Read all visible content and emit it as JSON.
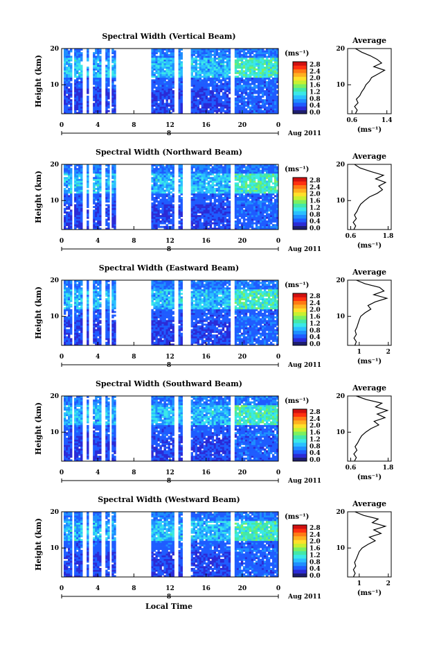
{
  "colors": [
    "#1e1e6e",
    "#2b2bd6",
    "#1f5cff",
    "#1f8fff",
    "#2ac0ff",
    "#3be8e8",
    "#44e8a8",
    "#7cf060",
    "#c8f030",
    "#ffe02a",
    "#ffb020",
    "#ff7a14",
    "#ff3010",
    "#d01010"
  ],
  "chart_data": {
    "type": "heatmap",
    "panels": [
      {
        "title": "Spectral Width (Vertical Beam)",
        "ylabel": "Height (km)",
        "yticks": [
          "20",
          "10"
        ],
        "xticks": [
          "0",
          "4",
          "8",
          "12",
          "16",
          "20",
          "0"
        ],
        "day_label": "8",
        "date_label": "Aug 2011",
        "colorbar_unit": "(ms⁻¹)",
        "colorbar_ticks": [
          "2.8",
          "2.4",
          "2.0",
          "1.6",
          "1.2",
          "0.8",
          "0.4",
          "0.0"
        ],
        "profile_title": "Average",
        "profile_xticks": [
          "0.6",
          "1.4"
        ],
        "profile_xrange": [
          0.5,
          1.5
        ],
        "profile_yticks": [
          "20",
          "10"
        ],
        "profile_unit": "(ms⁻¹)",
        "profile_heights": [
          2,
          3,
          4,
          5,
          6,
          7,
          8,
          9,
          10,
          11,
          12,
          13,
          14,
          15,
          16,
          17,
          18,
          19,
          20
        ],
        "profile_values": [
          0.68,
          0.72,
          0.66,
          0.74,
          0.7,
          0.78,
          0.82,
          0.88,
          0.92,
          1.0,
          1.05,
          1.2,
          1.35,
          1.1,
          1.28,
          1.18,
          1.02,
          0.82,
          0.68
        ]
      },
      {
        "title": "Spectral Width (Northward Beam)",
        "ylabel": "Height (km)",
        "yticks": [
          "20",
          "10"
        ],
        "xticks": [
          "0",
          "4",
          "8",
          "12",
          "16",
          "20",
          "0"
        ],
        "day_label": "8",
        "date_label": "Aug 2011",
        "colorbar_unit": "(ms⁻¹)",
        "colorbar_ticks": [
          "2.8",
          "2.4",
          "2.0",
          "1.6",
          "1.2",
          "0.8",
          "0.4",
          "0.0"
        ],
        "profile_title": "Average",
        "profile_xticks": [
          "0.6",
          "1.8"
        ],
        "profile_xrange": [
          0.5,
          1.9
        ],
        "profile_yticks": [
          "20",
          "10"
        ],
        "profile_unit": "(ms⁻¹)",
        "profile_heights": [
          2,
          3,
          4,
          5,
          6,
          7,
          8,
          9,
          10,
          11,
          12,
          13,
          14,
          15,
          16,
          17,
          18,
          19,
          20
        ],
        "profile_values": [
          0.7,
          0.76,
          0.68,
          0.78,
          0.72,
          0.8,
          0.85,
          0.92,
          1.05,
          1.2,
          1.45,
          1.62,
          1.5,
          1.72,
          1.4,
          1.65,
          1.25,
          0.9,
          0.72
        ]
      },
      {
        "title": "Spectral Width (Eastward Beam)",
        "ylabel": "Height (km)",
        "yticks": [
          "20",
          "10"
        ],
        "xticks": [
          "0",
          "4",
          "8",
          "12",
          "16",
          "20",
          "0"
        ],
        "day_label": "8",
        "date_label": "Aug 2011",
        "colorbar_unit": "(ms⁻¹)",
        "colorbar_ticks": [
          "2.8",
          "2.4",
          "2.0",
          "1.6",
          "1.2",
          "0.8",
          "0.4",
          "0.0"
        ],
        "profile_title": "Average",
        "profile_xticks": [
          "1",
          "2"
        ],
        "profile_xrange": [
          0.6,
          2.1
        ],
        "profile_yticks": [
          "20",
          "10"
        ],
        "profile_unit": "(ms⁻¹)",
        "profile_heights": [
          2,
          3,
          4,
          5,
          6,
          7,
          8,
          9,
          10,
          11,
          12,
          13,
          14,
          15,
          16,
          17,
          18,
          19,
          20
        ],
        "profile_values": [
          0.85,
          0.9,
          0.82,
          0.9,
          0.86,
          0.92,
          0.96,
          1.0,
          1.05,
          1.2,
          1.4,
          1.3,
          1.55,
          1.95,
          1.5,
          1.85,
          1.7,
          1.2,
          0.9
        ]
      },
      {
        "title": "Spectral Width (Southward Beam)",
        "ylabel": "Height (km)",
        "yticks": [
          "20",
          "10"
        ],
        "xticks": [
          "0",
          "4",
          "8",
          "12",
          "16",
          "20",
          "0"
        ],
        "day_label": "8",
        "date_label": "Aug 2011",
        "colorbar_unit": "(ms⁻¹)",
        "colorbar_ticks": [
          "2.8",
          "2.4",
          "2.0",
          "1.6",
          "1.2",
          "0.8",
          "0.4",
          "0.0"
        ],
        "profile_title": "Average",
        "profile_xticks": [
          "0.6",
          "1.8"
        ],
        "profile_xrange": [
          0.5,
          1.9
        ],
        "profile_yticks": [
          "20",
          "10"
        ],
        "profile_unit": "(ms⁻¹)",
        "profile_heights": [
          2,
          3,
          4,
          5,
          6,
          7,
          8,
          9,
          10,
          11,
          12,
          13,
          14,
          15,
          16,
          17,
          18,
          19,
          20
        ],
        "profile_values": [
          0.72,
          0.78,
          0.7,
          0.8,
          0.74,
          0.82,
          0.88,
          0.95,
          1.08,
          1.25,
          1.5,
          1.35,
          1.7,
          1.45,
          1.78,
          1.4,
          1.6,
          1.1,
          0.78
        ]
      },
      {
        "title": "Spectral Width (Westward Beam)",
        "ylabel": "Height (km)",
        "yticks": [
          "20",
          "10"
        ],
        "xticks": [
          "0",
          "4",
          "8",
          "12",
          "16",
          "20",
          "0"
        ],
        "day_label": "8",
        "date_label": "Aug 2011",
        "colorbar_unit": "(ms⁻¹)",
        "colorbar_ticks": [
          "2.8",
          "2.4",
          "2.0",
          "1.6",
          "1.2",
          "0.8",
          "0.4",
          "0.0"
        ],
        "profile_title": "Average",
        "profile_xticks": [
          "1",
          "2"
        ],
        "profile_xrange": [
          0.6,
          2.1
        ],
        "profile_yticks": [
          "20",
          "10"
        ],
        "profile_unit": "(ms⁻¹)",
        "profile_heights": [
          2,
          3,
          4,
          5,
          6,
          7,
          8,
          9,
          10,
          11,
          12,
          13,
          14,
          15,
          16,
          17,
          18,
          19,
          20
        ],
        "profile_values": [
          0.8,
          0.86,
          0.8,
          0.88,
          0.84,
          0.9,
          0.95,
          1.0,
          1.1,
          1.3,
          1.55,
          1.35,
          1.75,
          1.5,
          1.9,
          1.45,
          1.65,
          1.15,
          0.85
        ]
      }
    ],
    "xlabel": "Local Time",
    "xlim_hours": [
      0,
      24
    ],
    "ylim_km": [
      2,
      20
    ],
    "data_gaps_hours": [
      [
        0,
        0.2
      ],
      [
        1.2,
        1.5
      ],
      [
        2.4,
        2.7
      ],
      [
        3.1,
        3.4
      ],
      [
        4.3,
        4.9
      ],
      [
        5.3,
        5.6
      ],
      [
        6.0,
        10.0
      ],
      [
        12.5,
        13.0
      ],
      [
        13.4,
        14.3
      ],
      [
        18.6,
        19.2
      ]
    ]
  }
}
